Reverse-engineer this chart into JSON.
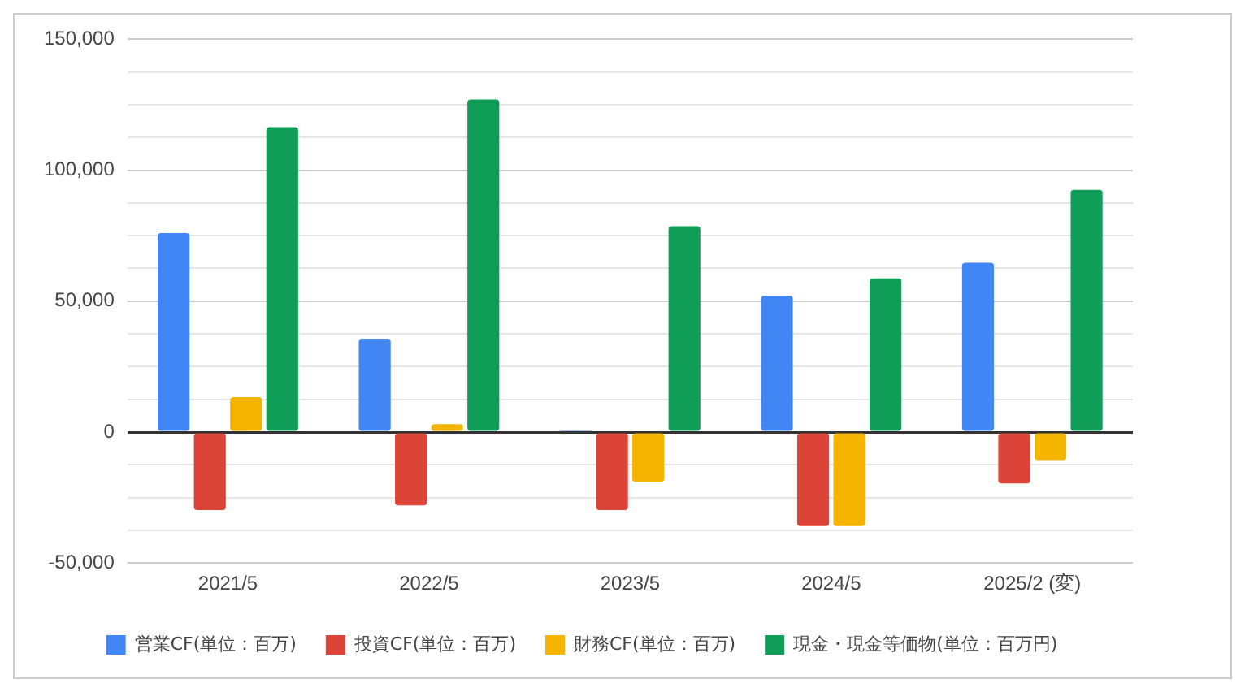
{
  "chart_data": {
    "type": "bar",
    "categories": [
      "2021/5",
      "2022/5",
      "2023/5",
      "2024/5",
      "2025/2 (変)"
    ],
    "series": [
      {
        "name": "営業CF(単位：百万)",
        "color": "#4285f4",
        "values": [
          76000,
          35700,
          600,
          52000,
          64700
        ]
      },
      {
        "name": "投資CF(単位：百万)",
        "color": "#db4437",
        "values": [
          -29800,
          -28000,
          -29800,
          -35900,
          -19600
        ]
      },
      {
        "name": "財務CF(単位：百万)",
        "color": "#f4b400",
        "values": [
          13300,
          3000,
          -19000,
          -35900,
          -10700
        ]
      },
      {
        "name": "現金・現金等価物(単位：百万円)",
        "color": "#0f9d58",
        "values": [
          116500,
          127000,
          78600,
          58700,
          92500
        ]
      }
    ],
    "ylim": [
      -50000,
      150000
    ],
    "yticks": [
      "-50,000",
      {
        "value": -37500,
        "label": null
      },
      {
        "value": -25000,
        "label": null
      },
      {
        "value": -12500,
        "label": null
      },
      {
        "value": 0,
        "label": "0"
      },
      {
        "value": 12500,
        "label": null
      },
      {
        "value": 25000,
        "label": null
      },
      {
        "value": 37500,
        "label": null
      },
      {
        "value": 50000,
        "label": "50,000"
      },
      {
        "value": 62500,
        "label": null
      },
      {
        "value": 75000,
        "label": null
      },
      {
        "value": 87500,
        "label": null
      },
      {
        "value": 100000,
        "label": "100,000"
      },
      {
        "value": 112500,
        "label": null
      },
      {
        "value": 125000,
        "label": null
      },
      {
        "value": 137500,
        "label": null
      },
      {
        "value": 150000,
        "label": "150,000"
      }
    ],
    "grid": "y",
    "legend": "bottom"
  }
}
